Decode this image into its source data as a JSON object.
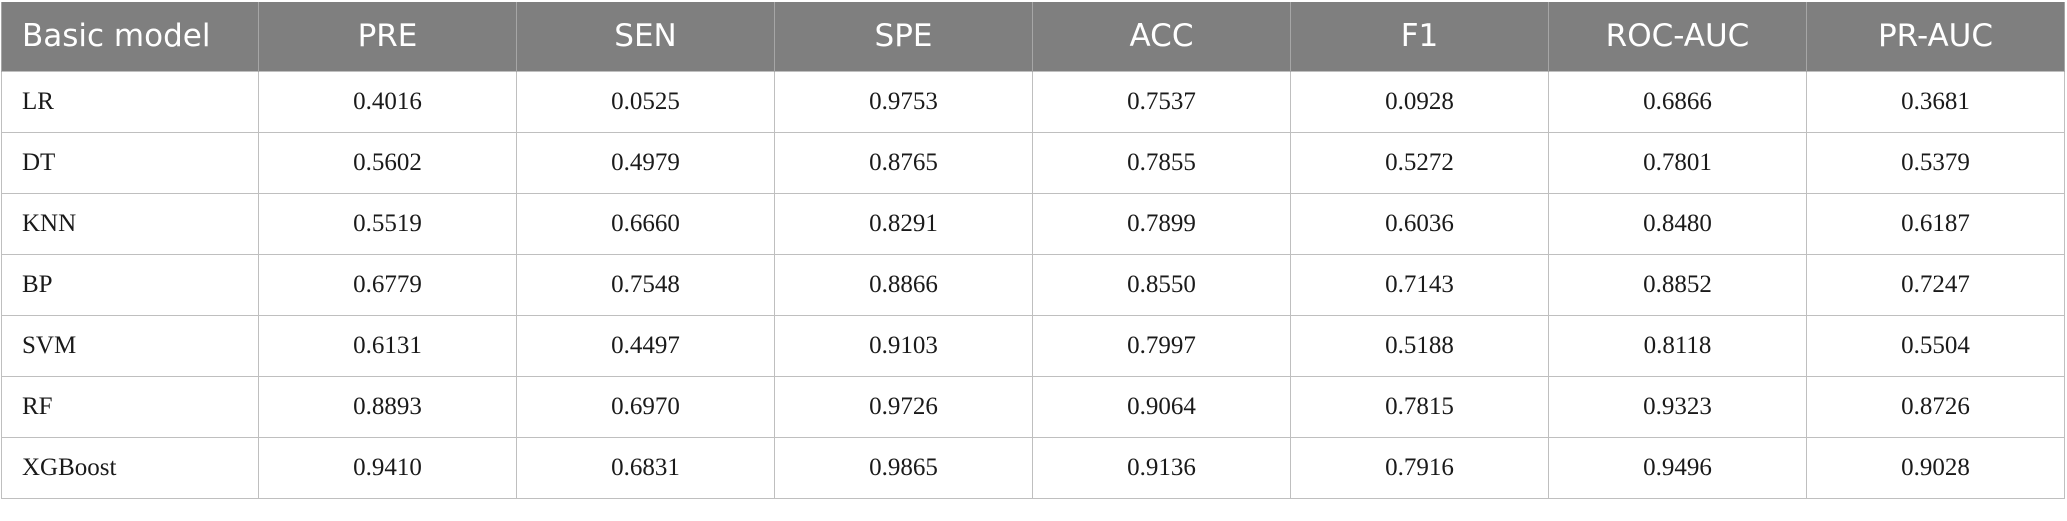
{
  "table": {
    "headers": [
      "Basic model",
      "PRE",
      "SEN",
      "SPE",
      "ACC",
      "F1",
      "ROC-AUC",
      "PR-AUC"
    ],
    "rows": [
      [
        "LR",
        "0.4016",
        "0.0525",
        "0.9753",
        "0.7537",
        "0.0928",
        "0.6866",
        "0.3681"
      ],
      [
        "DT",
        "0.5602",
        "0.4979",
        "0.8765",
        "0.7855",
        "0.5272",
        "0.7801",
        "0.5379"
      ],
      [
        "KNN",
        "0.5519",
        "0.6660",
        "0.8291",
        "0.7899",
        "0.6036",
        "0.8480",
        "0.6187"
      ],
      [
        "BP",
        "0.6779",
        "0.7548",
        "0.8866",
        "0.8550",
        "0.7143",
        "0.8852",
        "0.7247"
      ],
      [
        "SVM",
        "0.6131",
        "0.4497",
        "0.9103",
        "0.7997",
        "0.5188",
        "0.8118",
        "0.5504"
      ],
      [
        "RF",
        "0.8893",
        "0.6970",
        "0.9726",
        "0.9064",
        "0.7815",
        "0.9323",
        "0.8726"
      ],
      [
        "XGBoost",
        "0.9410",
        "0.6831",
        "0.9865",
        "0.9136",
        "0.7916",
        "0.9496",
        "0.9028"
      ]
    ]
  },
  "colors": {
    "header_background": "#7f7f7f",
    "header_text": "#ffffff",
    "cell_border": "#bfbfbf"
  }
}
